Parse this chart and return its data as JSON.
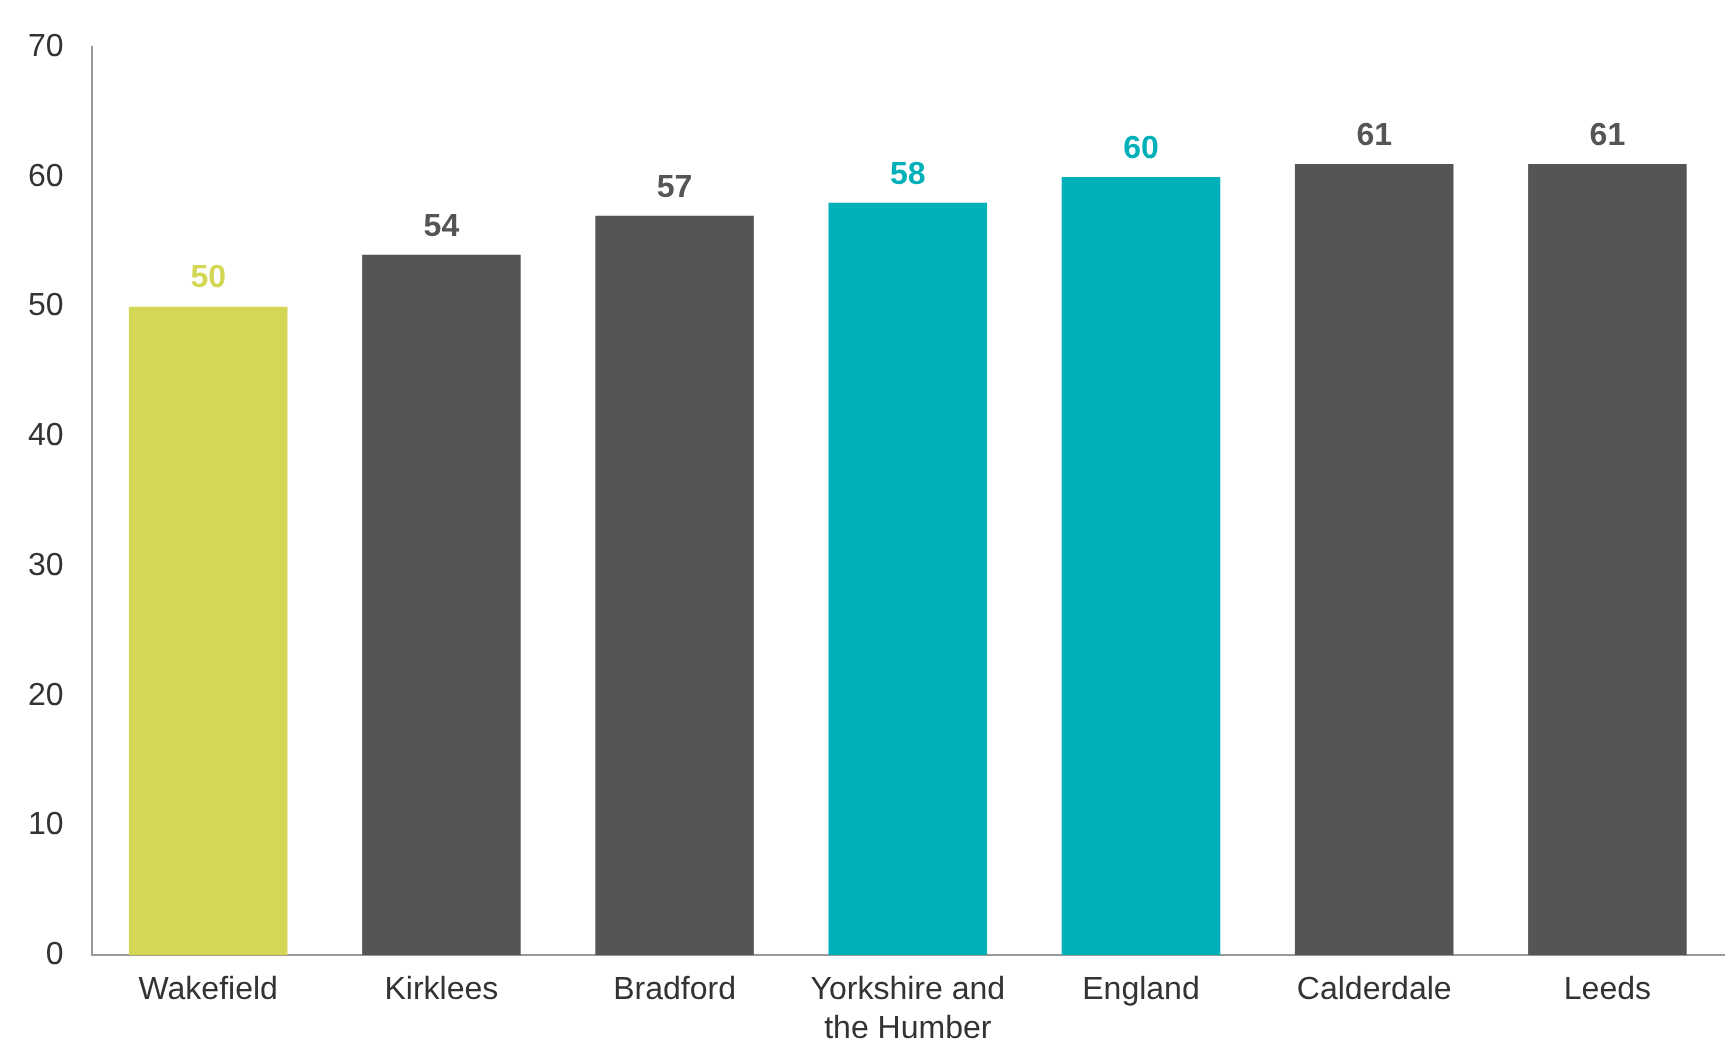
{
  "chart_data": {
    "type": "bar",
    "categories": [
      "Wakefield",
      "Kirklees",
      "Bradford",
      "Yorkshire and the Humber",
      "England",
      "Calderdale",
      "Leeds"
    ],
    "values": [
      50,
      54,
      57,
      58,
      60,
      61,
      61
    ],
    "colors": [
      "#d4d755",
      "#555555",
      "#555555",
      "#00b0b9",
      "#00b0b9",
      "#555555",
      "#555555"
    ],
    "ylim": [
      0,
      70
    ],
    "yticks": [
      0,
      10,
      20,
      30,
      40,
      50,
      60,
      70
    ],
    "grid": false,
    "legend": false,
    "data_labels": true
  }
}
